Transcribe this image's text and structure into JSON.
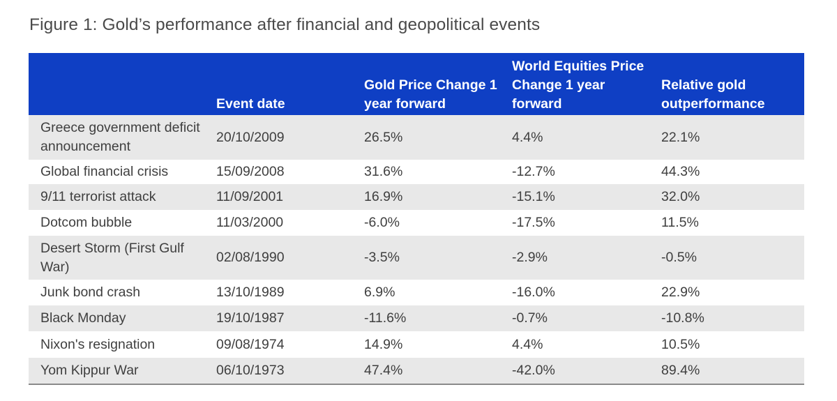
{
  "title": "Figure 1: Gold’s performance after financial and geopolitical events",
  "colors": {
    "header_bg": "#0f3fc4",
    "header_text": "#ffffff",
    "row_shade": "#e8e8e8",
    "row_plain": "#ffffff"
  },
  "chart_data": {
    "type": "table",
    "title": "Figure 1: Gold’s performance after financial and geopolitical events",
    "columns": [
      "",
      "Event date",
      "Gold Price Change 1 year forward",
      "World Equities Price Change 1 year forward",
      "Relative gold outperformance"
    ],
    "rows": [
      [
        "Greece government deficit announcement",
        "20/10/2009",
        "26.5%",
        "4.4%",
        "22.1%"
      ],
      [
        "Global financial crisis",
        "15/09/2008",
        "31.6%",
        "-12.7%",
        "44.3%"
      ],
      [
        "9/11 terrorist attack",
        "11/09/2001",
        "16.9%",
        "-15.1%",
        "32.0%"
      ],
      [
        "Dotcom bubble",
        "11/03/2000",
        "-6.0%",
        "-17.5%",
        "11.5%"
      ],
      [
        "Desert Storm (First Gulf War)",
        "02/08/1990",
        "-3.5%",
        "-2.9%",
        "-0.5%"
      ],
      [
        "Junk bond crash",
        "13/10/1989",
        "6.9%",
        "-16.0%",
        "22.9%"
      ],
      [
        "Black Monday",
        "19/10/1987",
        "-11.6%",
        "-0.7%",
        "-10.8%"
      ],
      [
        "Nixon's resignation",
        "09/08/1974",
        "14.9%",
        "4.4%",
        "10.5%"
      ],
      [
        "Yom Kippur War",
        "06/10/1973",
        "47.4%",
        "-42.0%",
        "89.4%"
      ]
    ]
  }
}
